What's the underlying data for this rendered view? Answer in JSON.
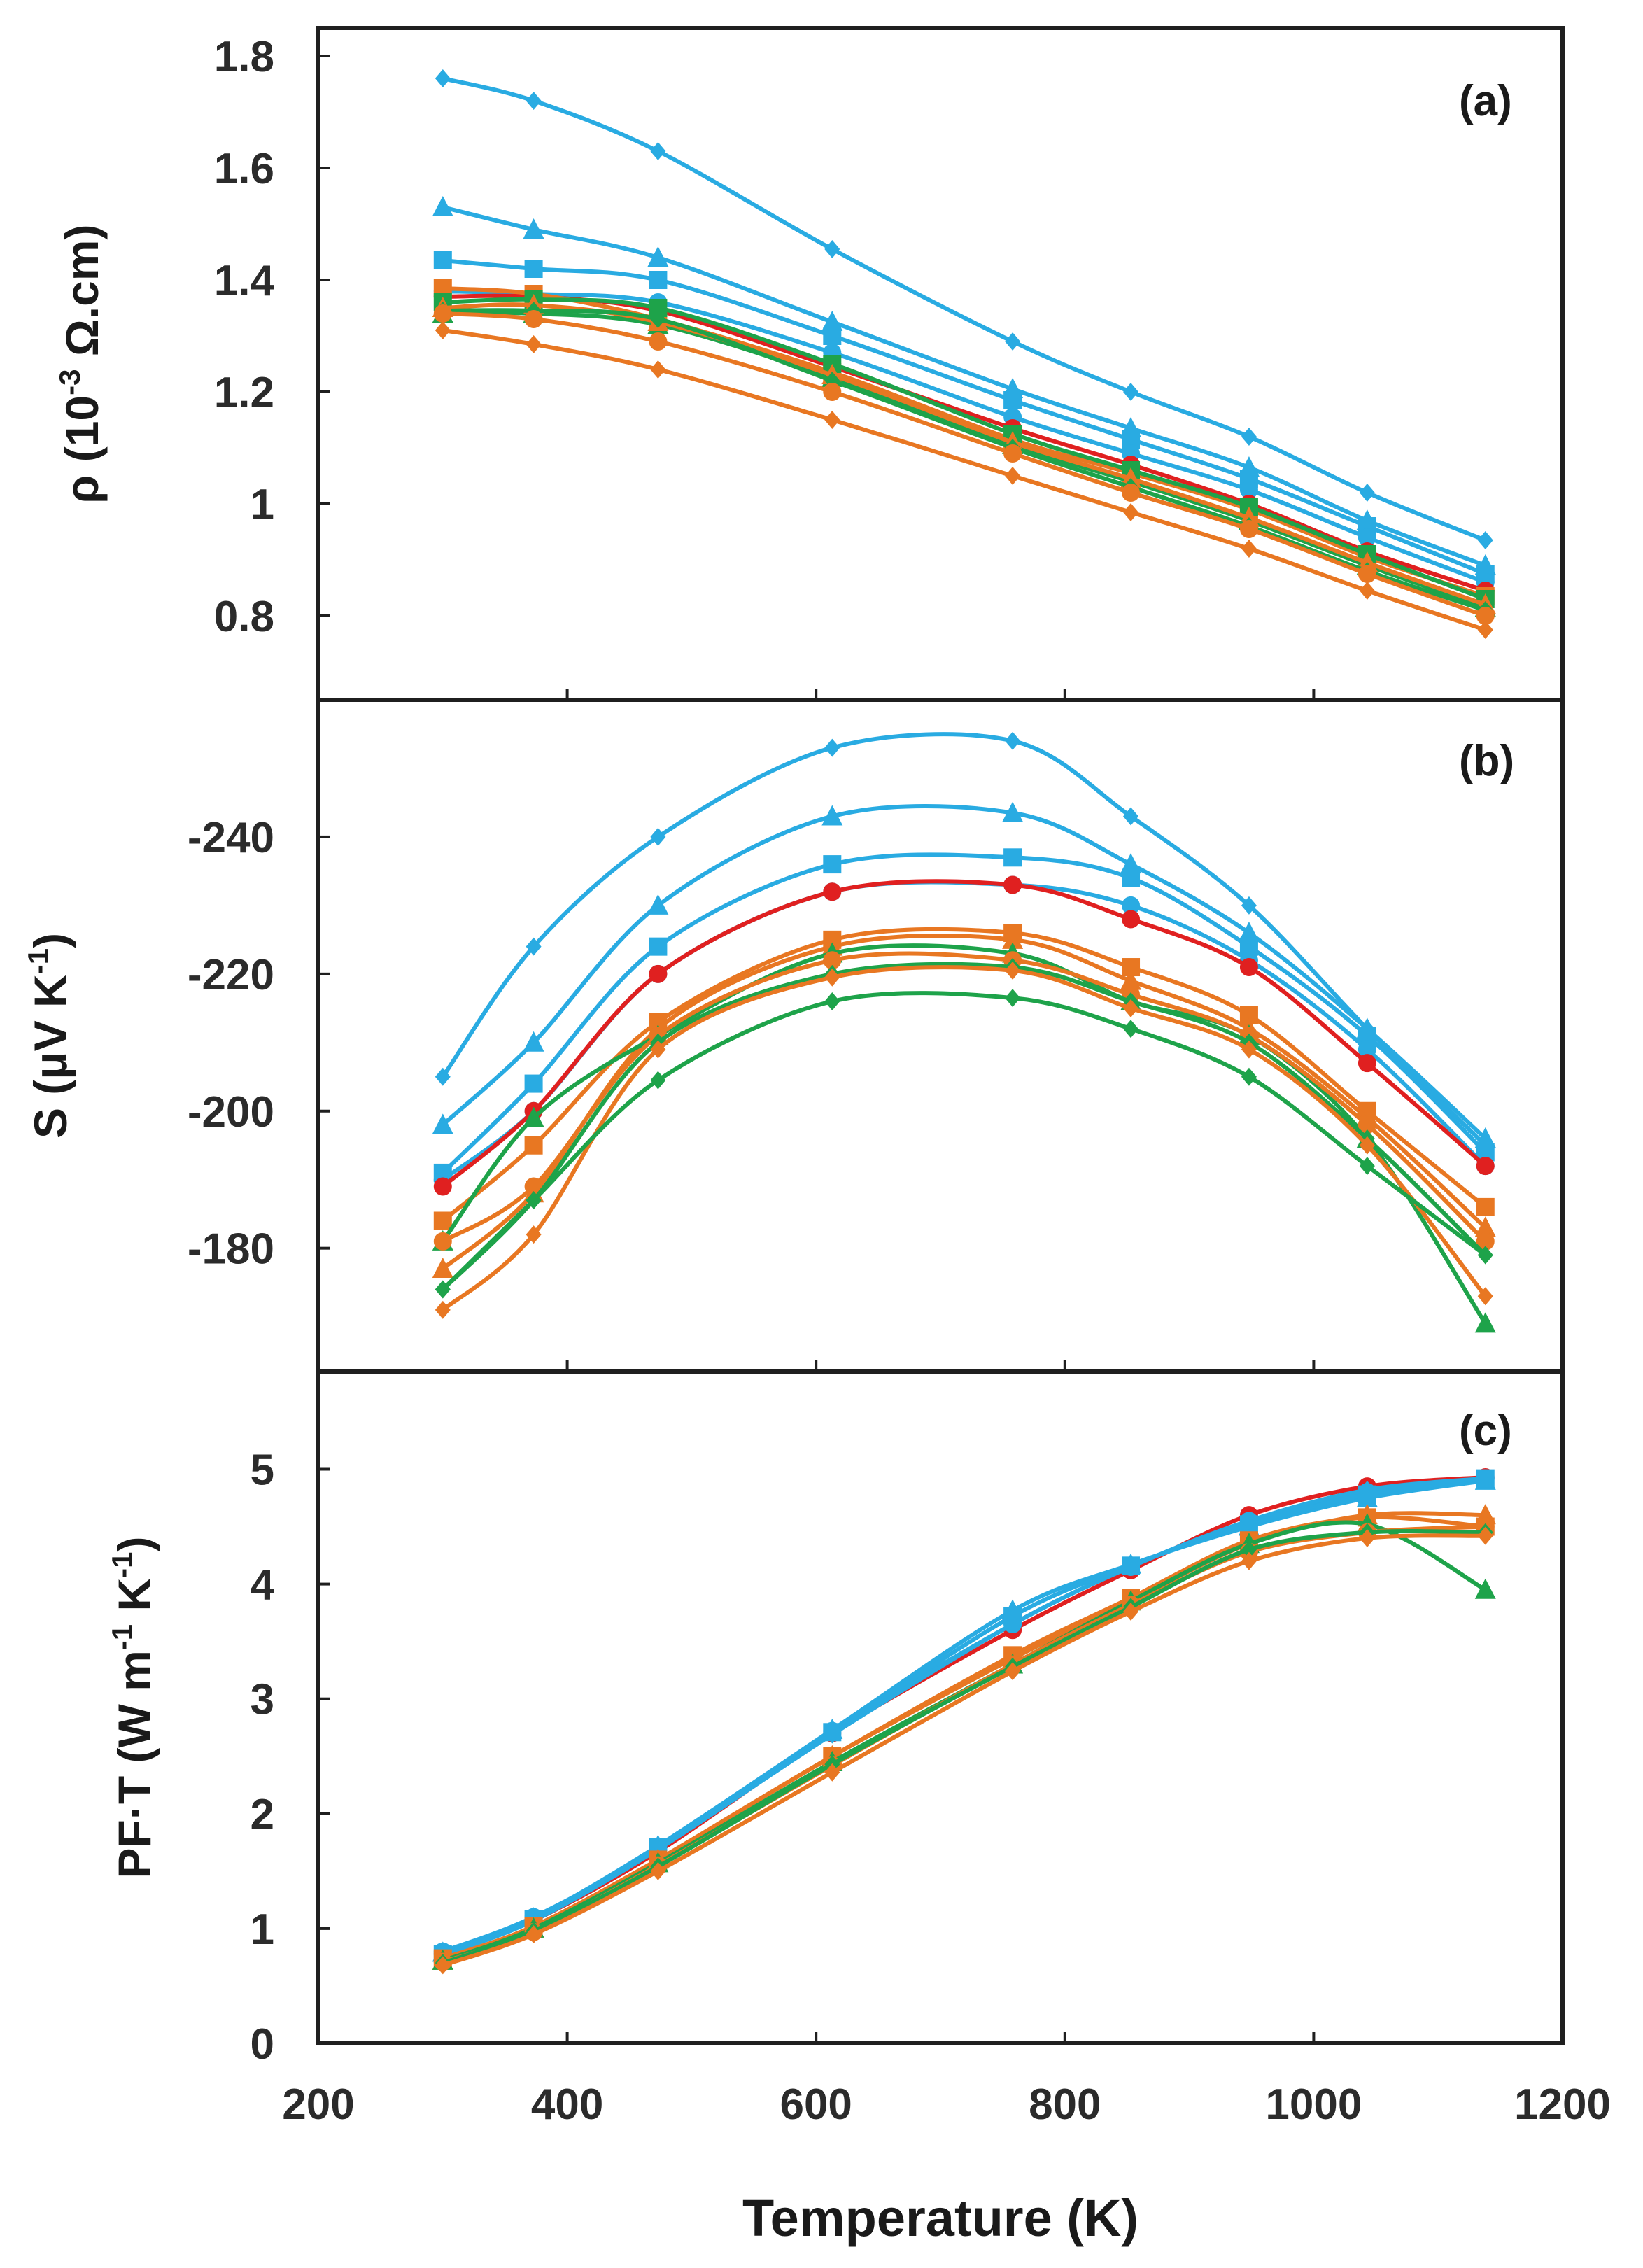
{
  "colors": {
    "blue": "#29abe2",
    "red": "#e02020",
    "green": "#1ea34a",
    "orange": "#e87722",
    "axis": "#1f1f1f"
  },
  "chart_data": [
    {
      "type": "line",
      "panel_label": "(a)",
      "ylabel": "ρ (10-3 Ω.cm)",
      "ylabel_parts": {
        "prefix": "ρ (10",
        "sup": "-3",
        "suffix": " Ω.cm)"
      },
      "xlim": [
        200,
        1200
      ],
      "ylim": [
        0.65,
        1.85
      ],
      "yticks": [
        0.8,
        1,
        1.2,
        1.4,
        1.6,
        1.8
      ],
      "ytick_labels": [
        "0.8",
        "1",
        "1.2",
        "1.4",
        "1.6",
        "1.8"
      ],
      "x": [
        300,
        373,
        473,
        613,
        758,
        853,
        948,
        1043,
        1138
      ],
      "series": [
        {
          "name": "blue diamond",
          "color": "blue",
          "marker": "diamond",
          "values": [
            1.76,
            1.72,
            1.63,
            1.455,
            1.29,
            1.2,
            1.12,
            1.02,
            0.935
          ]
        },
        {
          "name": "blue triangle",
          "color": "blue",
          "marker": "triangle",
          "values": [
            1.53,
            1.49,
            1.44,
            1.325,
            1.205,
            1.135,
            1.065,
            0.97,
            0.89
          ]
        },
        {
          "name": "blue square",
          "color": "blue",
          "marker": "square",
          "values": [
            1.435,
            1.42,
            1.4,
            1.3,
            1.185,
            1.115,
            1.045,
            0.96,
            0.875
          ]
        },
        {
          "name": "blue circle",
          "color": "blue",
          "marker": "circle",
          "values": [
            1.38,
            1.375,
            1.36,
            1.27,
            1.155,
            1.09,
            1.025,
            0.94,
            0.86
          ]
        },
        {
          "name": "red circle",
          "color": "red",
          "marker": "circle",
          "values": [
            1.37,
            1.37,
            1.345,
            1.245,
            1.135,
            1.07,
            1.0,
            0.915,
            0.845
          ]
        },
        {
          "name": "orange square",
          "color": "orange",
          "marker": "square",
          "values": [
            1.385,
            1.375,
            1.33,
            1.235,
            1.115,
            1.055,
            0.99,
            0.905,
            0.835
          ]
        },
        {
          "name": "green square",
          "color": "green",
          "marker": "square",
          "values": [
            1.36,
            1.365,
            1.35,
            1.25,
            1.125,
            1.06,
            0.995,
            0.91,
            0.83
          ]
        },
        {
          "name": "green triangle",
          "color": "green",
          "marker": "triangle",
          "values": [
            1.34,
            1.34,
            1.32,
            1.225,
            1.105,
            1.04,
            0.97,
            0.89,
            0.815
          ]
        },
        {
          "name": "orange triangle",
          "color": "orange",
          "marker": "triangle",
          "values": [
            1.35,
            1.355,
            1.325,
            1.23,
            1.11,
            1.045,
            0.975,
            0.895,
            0.82
          ]
        },
        {
          "name": "green diamond",
          "color": "green",
          "marker": "diamond",
          "values": [
            1.345,
            1.345,
            1.33,
            1.22,
            1.1,
            1.03,
            0.96,
            0.88,
            0.81
          ]
        },
        {
          "name": "orange circle",
          "color": "orange",
          "marker": "circle",
          "values": [
            1.34,
            1.33,
            1.29,
            1.2,
            1.09,
            1.02,
            0.955,
            0.875,
            0.8
          ]
        },
        {
          "name": "orange diamond",
          "color": "orange",
          "marker": "diamond",
          "values": [
            1.31,
            1.285,
            1.24,
            1.15,
            1.05,
            0.985,
            0.92,
            0.845,
            0.775
          ]
        }
      ]
    },
    {
      "type": "line",
      "panel_label": "(b)",
      "ylabel": "S (μV K-1)",
      "ylabel_parts": {
        "prefix": "S (μV K",
        "sup": "-1",
        "suffix": ")"
      },
      "xlim": [
        200,
        1200
      ],
      "ylim": [
        -162,
        -260
      ],
      "yticks": [
        -180,
        -200,
        -220,
        -240
      ],
      "ytick_labels": [
        "-180",
        "-200",
        "-220",
        "-240"
      ],
      "x": [
        300,
        373,
        473,
        613,
        758,
        853,
        948,
        1043,
        1138
      ],
      "series": [
        {
          "name": "blue diamond",
          "color": "blue",
          "marker": "diamond",
          "values": [
            -205,
            -224,
            -240,
            -253,
            -254,
            -243,
            -230,
            -212,
            -195
          ]
        },
        {
          "name": "blue triangle",
          "color": "blue",
          "marker": "triangle",
          "values": [
            -198,
            -210,
            -230,
            -243,
            -243.5,
            -236,
            -226,
            -212,
            -196
          ]
        },
        {
          "name": "blue square",
          "color": "blue",
          "marker": "square",
          "values": [
            -191,
            -204,
            -224,
            -236,
            -237,
            -234,
            -224,
            -211,
            -194
          ]
        },
        {
          "name": "blue circle",
          "color": "blue",
          "marker": "circle",
          "values": [
            -190,
            -200,
            -220,
            -232,
            -233,
            -230,
            -222,
            -209,
            -192
          ]
        },
        {
          "name": "red circle",
          "color": "red",
          "marker": "circle",
          "values": [
            -189,
            -200,
            -220,
            -232,
            -233,
            -228,
            -221,
            -207,
            -192
          ]
        },
        {
          "name": "orange square",
          "color": "orange",
          "marker": "square",
          "values": [
            -184,
            -195,
            -213,
            -225,
            -226,
            -221,
            -214,
            -200,
            -186
          ]
        },
        {
          "name": "orange triangle",
          "color": "orange",
          "marker": "triangle",
          "values": [
            -177,
            -188,
            -212,
            -224,
            -225,
            -219,
            -212,
            -199,
            -183
          ]
        },
        {
          "name": "green triangle",
          "color": "green",
          "marker": "triangle",
          "values": [
            -181,
            -199,
            -211,
            -223,
            -223,
            -216,
            -211,
            -196,
            -169
          ]
        },
        {
          "name": "orange circle",
          "color": "orange",
          "marker": "circle",
          "values": [
            -181,
            -189,
            -211,
            -222,
            -222,
            -217,
            -211,
            -198,
            -181
          ]
        },
        {
          "name": "green diamond",
          "color": "green",
          "marker": "diamond",
          "values": [
            -174,
            -187,
            -210,
            -220,
            -221,
            -216,
            -210,
            -196,
            -179
          ]
        },
        {
          "name": "orange diamond",
          "color": "orange",
          "marker": "diamond",
          "values": [
            -171,
            -182,
            -209,
            -219.5,
            -220.5,
            -215,
            -209,
            -195,
            -173
          ]
        },
        {
          "name": "green diamond 2",
          "color": "green",
          "marker": "diamond",
          "values": [
            -174,
            -187,
            -204.5,
            -216,
            -216.5,
            -212,
            -205,
            -192,
            -179
          ]
        }
      ]
    },
    {
      "type": "line",
      "panel_label": "(c)",
      "ylabel": "PF·T  (W m-1 K-1)",
      "ylabel_parts": {
        "prefix": "PF·T  (W m",
        "sup": "-1",
        "mid": " K",
        "sup2": "-1",
        "suffix": ")"
      },
      "xlabel": "Temperature (K)",
      "xlim": [
        200,
        1200
      ],
      "ylim": [
        0,
        5.85
      ],
      "yticks": [
        0,
        1,
        2,
        3,
        4,
        5
      ],
      "ytick_labels": [
        "0",
        "1",
        "2",
        "3",
        "4",
        "5"
      ],
      "xticks": [
        200,
        400,
        600,
        800,
        1000,
        1200
      ],
      "xtick_labels": [
        "200",
        "400",
        "600",
        "800",
        "1000",
        "1200"
      ],
      "x": [
        300,
        373,
        473,
        613,
        758,
        853,
        948,
        1043,
        1138
      ],
      "series": [
        {
          "name": "red circle",
          "color": "red",
          "marker": "circle",
          "values": [
            0.78,
            1.07,
            1.67,
            2.7,
            3.6,
            4.12,
            4.6,
            4.85,
            4.93
          ]
        },
        {
          "name": "blue circle",
          "color": "blue",
          "marker": "circle",
          "values": [
            0.8,
            1.1,
            1.7,
            2.72,
            3.65,
            4.15,
            4.55,
            4.8,
            4.92
          ]
        },
        {
          "name": "blue triangle",
          "color": "blue",
          "marker": "triangle",
          "values": [
            0.79,
            1.09,
            1.72,
            2.73,
            3.77,
            4.17,
            4.5,
            4.75,
            4.9
          ]
        },
        {
          "name": "blue square",
          "color": "blue",
          "marker": "square",
          "values": [
            0.78,
            1.08,
            1.71,
            2.71,
            3.72,
            4.16,
            4.52,
            4.78,
            4.92
          ]
        },
        {
          "name": "blue diamond",
          "color": "blue",
          "marker": "diamond",
          "values": [
            0.77,
            1.07,
            1.69,
            2.69,
            3.65,
            4.15,
            4.55,
            4.82,
            4.92
          ]
        },
        {
          "name": "orange triangle",
          "color": "orange",
          "marker": "triangle",
          "values": [
            0.72,
            1.0,
            1.6,
            2.5,
            3.35,
            3.85,
            4.35,
            4.6,
            4.6
          ]
        },
        {
          "name": "orange square",
          "color": "orange",
          "marker": "square",
          "values": [
            0.74,
            1.02,
            1.6,
            2.5,
            3.38,
            3.88,
            4.38,
            4.58,
            4.5
          ]
        },
        {
          "name": "green triangle",
          "color": "green",
          "marker": "triangle",
          "values": [
            0.72,
            1.0,
            1.57,
            2.45,
            3.3,
            3.85,
            4.35,
            4.52,
            3.95
          ]
        },
        {
          "name": "orange circle",
          "color": "orange",
          "marker": "circle",
          "values": [
            0.71,
            0.97,
            1.55,
            2.42,
            3.3,
            3.82,
            4.28,
            4.45,
            4.5
          ]
        },
        {
          "name": "green diamond",
          "color": "green",
          "marker": "diamond",
          "values": [
            0.7,
            0.98,
            1.54,
            2.43,
            3.28,
            3.8,
            4.3,
            4.45,
            4.45
          ]
        },
        {
          "name": "orange diamond",
          "color": "orange",
          "marker": "diamond",
          "values": [
            0.68,
            0.95,
            1.5,
            2.36,
            3.24,
            3.76,
            4.2,
            4.4,
            4.42
          ]
        }
      ]
    }
  ]
}
